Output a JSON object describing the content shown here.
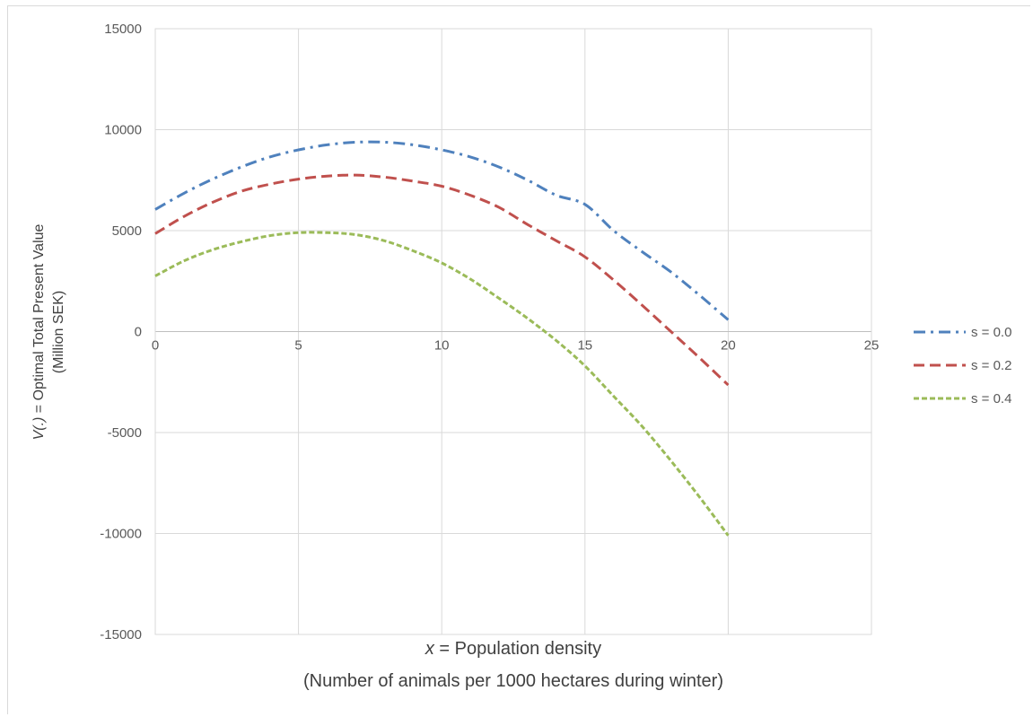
{
  "chart_data": {
    "type": "line",
    "xlabel_var": "x",
    "xlabel_rest": " = Population density",
    "xlabel_sub": "(Number of animals per 1000 hectares during winter)",
    "ylabel_var": "V(.)",
    "ylabel_rest": " = Optimal Total Present Value",
    "ylabel_sub": "(Million SEK)",
    "xlim": [
      0,
      25
    ],
    "ylim": [
      -15000,
      15000
    ],
    "x_ticks": [
      "0",
      "5",
      "10",
      "15",
      "20",
      "25"
    ],
    "y_ticks": [
      "15000",
      "10000",
      "5000",
      "0",
      "-5000",
      "-10000",
      "-15000"
    ],
    "grid": true,
    "legend_position": "right",
    "series": [
      {
        "name": "s = 0.0",
        "color": "#4f81bd",
        "dash": "dash-dot",
        "x": [
          0,
          1,
          2,
          3,
          4,
          5,
          6,
          7,
          8,
          9,
          10,
          11,
          12,
          13,
          14,
          15,
          16,
          17,
          18,
          19,
          20
        ],
        "values": [
          6050,
          6850,
          7550,
          8150,
          8650,
          9000,
          9250,
          9380,
          9380,
          9250,
          9000,
          8650,
          8150,
          7500,
          6750,
          6300,
          5000,
          3950,
          2950,
          1800,
          580
        ]
      },
      {
        "name": "s = 0.2",
        "color": "#c0504d",
        "dash": "dash",
        "x": [
          0,
          1,
          2,
          3,
          4,
          5,
          6,
          7,
          8,
          9,
          10,
          11,
          12,
          13,
          14,
          15,
          16,
          17,
          18,
          19,
          20
        ],
        "values": [
          4850,
          5700,
          6400,
          6950,
          7300,
          7550,
          7700,
          7750,
          7650,
          7450,
          7200,
          6750,
          6150,
          5300,
          4500,
          3700,
          2550,
          1300,
          0,
          -1300,
          -2650
        ]
      },
      {
        "name": "s = 0.4",
        "color": "#9bbb59",
        "dash": "short-dash",
        "x": [
          0,
          1,
          2,
          3,
          4,
          5,
          6,
          7,
          8,
          9,
          10,
          11,
          12,
          13,
          14,
          15,
          16,
          17,
          18,
          19,
          20
        ],
        "values": [
          2750,
          3500,
          4050,
          4450,
          4750,
          4900,
          4900,
          4800,
          4500,
          4000,
          3400,
          2600,
          1650,
          650,
          -450,
          -1700,
          -3200,
          -4700,
          -6400,
          -8200,
          -10100
        ]
      }
    ]
  }
}
